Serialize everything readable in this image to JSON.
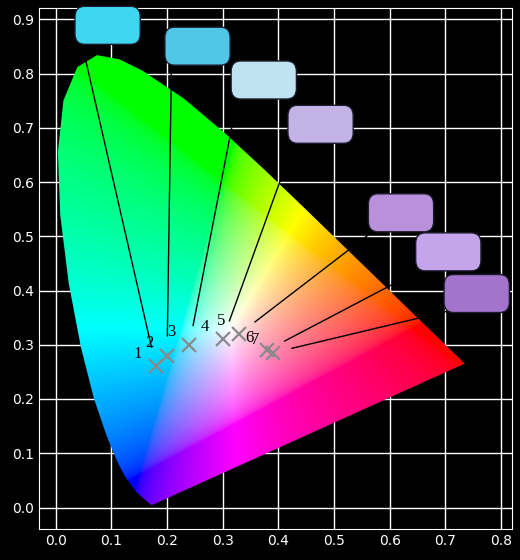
{
  "chart_data": {
    "type": "scatter",
    "x": [
      0.18,
      0.2,
      0.24,
      0.3,
      0.33,
      0.38,
      0.39
    ],
    "values": [
      0.26,
      0.28,
      0.3,
      0.31,
      0.32,
      0.29,
      0.285
    ],
    "labels": [
      "1",
      "2",
      "3",
      "4",
      "5",
      "6",
      "7"
    ],
    "marker": "x",
    "color": "#8a8a8a",
    "xlim": [
      -0.03,
      0.82
    ],
    "ylim": [
      -0.04,
      0.92
    ],
    "xticks": [
      0.0,
      0.1,
      0.2,
      0.3,
      0.4,
      0.5,
      0.6,
      0.7,
      0.8
    ],
    "yticks": [
      0.0,
      0.1,
      0.2,
      0.3,
      0.4,
      0.5,
      0.6,
      0.7,
      0.8,
      0.9
    ],
    "grid": true
  }
}
